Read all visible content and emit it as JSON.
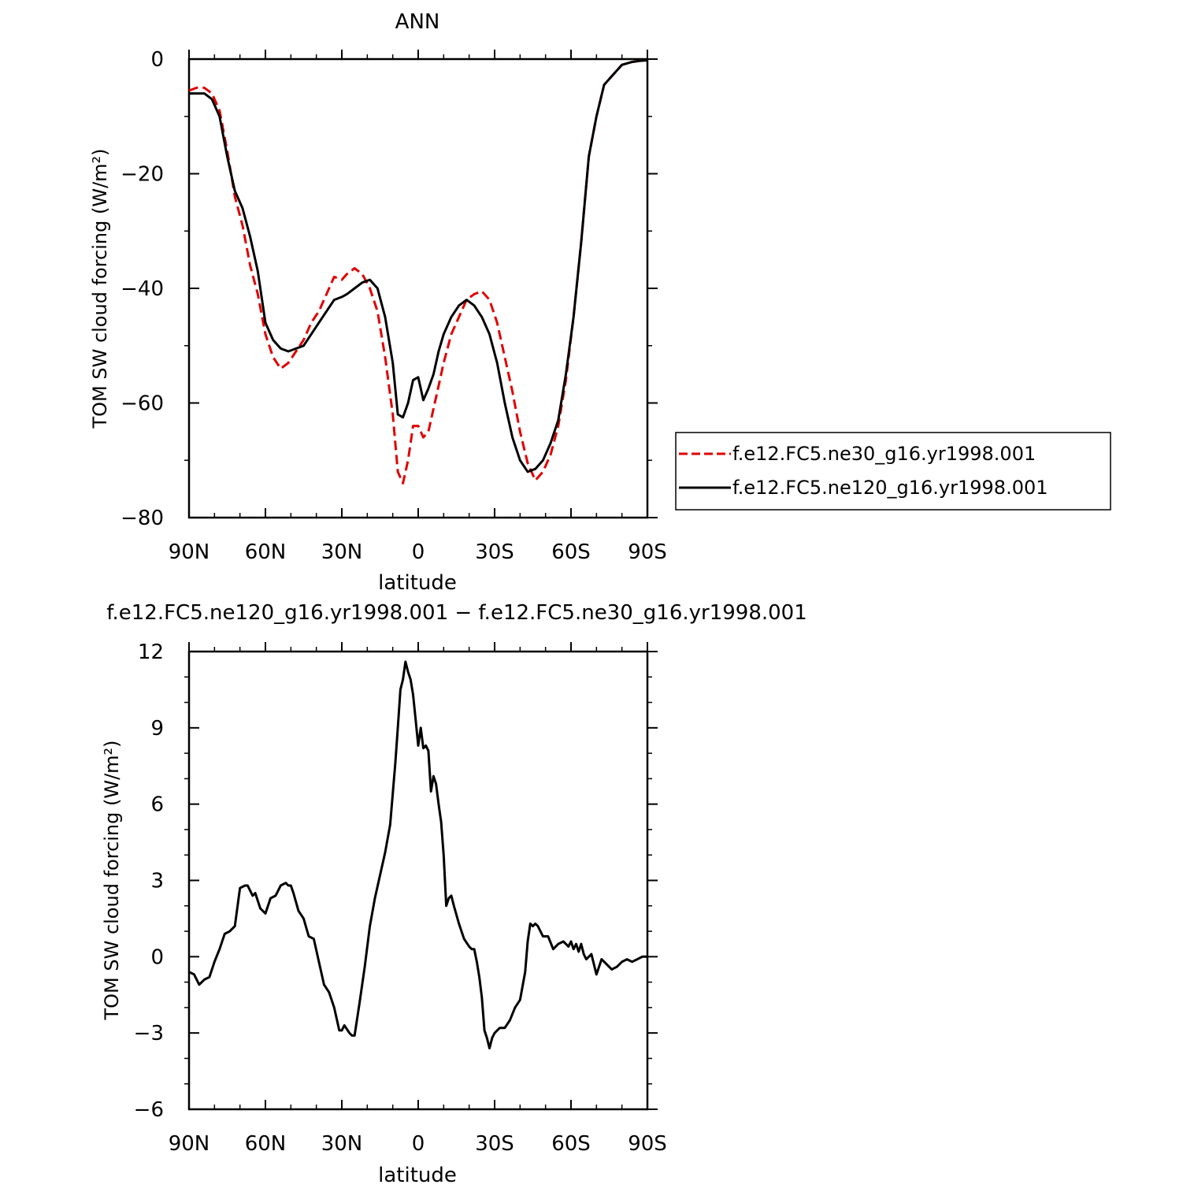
{
  "chart_data": [
    {
      "type": "line",
      "title": "ANN",
      "xlabel": "latitude",
      "ylabel": "TOM SW cloud forcing (W/m²)",
      "x_ticks": [
        "90N",
        "60N",
        "30N",
        "0",
        "30S",
        "60S",
        "90S"
      ],
      "x_tick_values": [
        90,
        60,
        30,
        0,
        -30,
        -60,
        -90
      ],
      "ylim": [
        -80,
        0
      ],
      "y_ticks": [
        0,
        -20,
        -40,
        -60,
        -80
      ],
      "y_tick_labels": [
        "0",
        "−20",
        "−40",
        "−60",
        "−80"
      ],
      "legend_position": "right",
      "series": [
        {
          "name": "f.e12.FC5.ne30_g16.yr1998.001",
          "color": "#e00000",
          "style": "dashed",
          "x": [
            90,
            87,
            84,
            81,
            78,
            75,
            72,
            69,
            66,
            63,
            60,
            57,
            54,
            51,
            48,
            45,
            42,
            39,
            36,
            33,
            30,
            28,
            25,
            22,
            19,
            16,
            13,
            10,
            8,
            6,
            4,
            2,
            0,
            -2,
            -4,
            -6,
            -8,
            -10,
            -13,
            -16,
            -19,
            -22,
            -25,
            -28,
            -31,
            -34,
            -37,
            -40,
            -43,
            -46,
            -49,
            -52,
            -55,
            -58,
            -61,
            -64,
            -67,
            -70,
            -73,
            -76,
            -80,
            -84,
            -87,
            -90
          ],
          "y": [
            -5.5,
            -5,
            -5,
            -6,
            -9,
            -16,
            -24,
            -29,
            -36,
            -41,
            -48,
            -52,
            -54,
            -53,
            -51,
            -49,
            -46,
            -44,
            -41,
            -38,
            -38.5,
            -37.5,
            -36.5,
            -37.5,
            -40,
            -44,
            -52,
            -62,
            -72,
            -74,
            -70,
            -64,
            -64,
            -66,
            -65,
            -61,
            -57,
            -53,
            -48,
            -45,
            -42,
            -41,
            -40.5,
            -42,
            -46,
            -52,
            -58,
            -65,
            -70.5,
            -73.5,
            -72,
            -69,
            -64,
            -56,
            -45,
            -32,
            -17,
            -10,
            -4.5,
            -3,
            -1,
            -0.5,
            -0.3,
            -0.2
          ]
        },
        {
          "name": "f.e12.FC5.ne120_g16.yr1998.001",
          "color": "#000000",
          "style": "solid",
          "x": [
            90,
            87,
            84,
            81,
            78,
            75,
            72,
            69,
            66,
            63,
            60,
            57,
            54,
            51,
            48,
            45,
            42,
            39,
            36,
            33,
            30,
            28,
            25,
            22,
            19,
            16,
            13,
            10,
            8,
            6,
            4,
            2,
            0,
            -2,
            -4,
            -6,
            -8,
            -10,
            -13,
            -16,
            -19,
            -22,
            -25,
            -28,
            -31,
            -34,
            -37,
            -40,
            -43,
            -46,
            -49,
            -52,
            -55,
            -58,
            -61,
            -64,
            -67,
            -70,
            -73,
            -76,
            -80,
            -84,
            -87,
            -90
          ],
          "y": [
            -6,
            -6,
            -6,
            -7,
            -10,
            -17,
            -23,
            -26,
            -31,
            -37,
            -46,
            -49,
            -50.5,
            -51,
            -50.5,
            -50,
            -48,
            -46,
            -44,
            -42,
            -41.5,
            -41,
            -40,
            -39,
            -38.5,
            -40,
            -45,
            -53,
            -62,
            -62.5,
            -60,
            -56,
            -55.5,
            -59.5,
            -57.5,
            -55,
            -51,
            -48,
            -45,
            -43,
            -42,
            -43,
            -45,
            -48,
            -53,
            -60,
            -66,
            -70,
            -72,
            -71.5,
            -70,
            -67,
            -63,
            -55,
            -45,
            -32,
            -17,
            -10,
            -4.5,
            -3,
            -1,
            -0.5,
            -0.3,
            -0.2
          ]
        }
      ]
    },
    {
      "type": "line",
      "title": "f.e12.FC5.ne120_g16.yr1998.001 − f.e12.FC5.ne30_g16.yr1998.001",
      "xlabel": "latitude",
      "ylabel": "TOM SW cloud forcing (W/m²)",
      "x_ticks": [
        "90N",
        "60N",
        "30N",
        "0",
        "30S",
        "60S",
        "90S"
      ],
      "x_tick_values": [
        90,
        60,
        30,
        0,
        -30,
        -60,
        -90
      ],
      "ylim": [
        -6,
        12
      ],
      "y_ticks": [
        12,
        9,
        6,
        3,
        0,
        -3,
        -6
      ],
      "y_tick_labels": [
        "12",
        "9",
        "6",
        "3",
        "0",
        "−3",
        "−6"
      ],
      "series": [
        {
          "color": "#000000",
          "style": "solid",
          "x": [
            90,
            88,
            86,
            84,
            82,
            80,
            78,
            76,
            74,
            72,
            70,
            68,
            67,
            65,
            64,
            62,
            60,
            58,
            56,
            54,
            52,
            51,
            50,
            49,
            47,
            45,
            43,
            41,
            39,
            37,
            35,
            33,
            31,
            30,
            29,
            27,
            26,
            25,
            23,
            21,
            19,
            17,
            15,
            13,
            11,
            9,
            8,
            7,
            6,
            5,
            4,
            3,
            2,
            1,
            0,
            -1,
            -2,
            -3,
            -4,
            -5,
            -6,
            -7,
            -8,
            -9,
            -10,
            -11,
            -12,
            -13,
            -14,
            -16,
            -18,
            -20,
            -21,
            -22,
            -23,
            -24,
            -25,
            -26,
            -27,
            -28,
            -29,
            -30,
            -32,
            -34,
            -36,
            -38,
            -40,
            -42,
            -43,
            -44,
            -45,
            -46,
            -47,
            -48,
            -49,
            -51,
            -53,
            -55,
            -57,
            -59,
            -60,
            -61,
            -62,
            -63,
            -64,
            -65,
            -66,
            -68,
            -70,
            -72,
            -74,
            -76,
            -78,
            -80,
            -82,
            -84,
            -86,
            -88,
            -90
          ],
          "y": [
            -0.6,
            -0.7,
            -1.1,
            -0.9,
            -0.8,
            -0.2,
            0.3,
            0.9,
            1.0,
            1.2,
            2.7,
            2.8,
            2.8,
            2.4,
            2.5,
            1.9,
            1.7,
            2.3,
            2.4,
            2.8,
            2.9,
            2.8,
            2.8,
            2.5,
            1.8,
            1.5,
            0.8,
            0.7,
            -0.2,
            -1.1,
            -1.4,
            -2.0,
            -2.9,
            -2.9,
            -2.7,
            -3.0,
            -3.1,
            -3.1,
            -1.8,
            -0.4,
            1.2,
            2.3,
            3.2,
            4.1,
            5.2,
            7.6,
            9.0,
            10.5,
            10.9,
            11.6,
            11.2,
            10.9,
            10.3,
            9.3,
            8.3,
            9.0,
            8.2,
            8.3,
            8.1,
            6.5,
            7.1,
            6.8,
            6.0,
            5.3,
            4.0,
            2.0,
            2.3,
            2.4,
            2.0,
            1.3,
            0.7,
            0.4,
            0.3,
            0.3,
            -0.2,
            -0.8,
            -1.6,
            -2.9,
            -3.2,
            -3.6,
            -3.2,
            -3.0,
            -2.8,
            -2.8,
            -2.5,
            -2.0,
            -1.7,
            -0.6,
            0.6,
            1.3,
            1.2,
            1.3,
            1.2,
            1.0,
            0.8,
            0.8,
            0.3,
            0.5,
            0.6,
            0.4,
            0.6,
            0.3,
            0.5,
            0.2,
            0.5,
            0.1,
            -0.1,
            0.1,
            -0.7,
            -0.1,
            -0.3,
            -0.5,
            -0.4,
            -0.2,
            -0.1,
            -0.2,
            -0.1,
            0.0,
            0.0
          ]
        }
      ]
    }
  ]
}
